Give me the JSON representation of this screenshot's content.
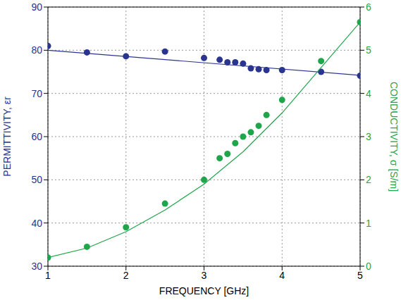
{
  "chart_data": {
    "type": "scatter",
    "xlabel": "FREQUENCY [GHz]",
    "ylabel": "PERMITTIVITY, εr",
    "y2label": "CONDUCTIVITY, σ [S/m]",
    "xlim": [
      1,
      5
    ],
    "xticks": [
      1,
      2,
      3,
      4,
      5
    ],
    "ylim": [
      30,
      90
    ],
    "yticks": [
      30,
      40,
      50,
      60,
      70,
      80,
      90
    ],
    "y2lim": [
      0,
      6
    ],
    "y2ticks": [
      0,
      1,
      2,
      3,
      4,
      5,
      6
    ],
    "grid": true,
    "series": [
      {
        "type": "scatter",
        "marker": "circle",
        "color": "#2a3590",
        "axis": "y",
        "x": [
          1,
          1.5,
          2,
          2.5,
          3,
          3.2,
          3.3,
          3.4,
          3.5,
          3.6,
          3.7,
          3.8,
          4,
          4.5,
          5
        ],
        "values": [
          81,
          79.5,
          78.6,
          79.7,
          78.2,
          77.8,
          77.2,
          77.2,
          76.9,
          75.8,
          75.6,
          75.4,
          75.4,
          75,
          74.1
        ]
      },
      {
        "type": "line",
        "marker": "none",
        "color": "#2a3590",
        "axis": "y",
        "x": [
          1,
          5
        ],
        "values": [
          80,
          74.2
        ]
      },
      {
        "type": "scatter",
        "marker": "circle",
        "color": "#1ea64b",
        "axis": "y2",
        "x": [
          1,
          1.5,
          2,
          2.5,
          3,
          3.2,
          3.3,
          3.4,
          3.5,
          3.6,
          3.7,
          3.8,
          4,
          4.5,
          5
        ],
        "values": [
          0.2,
          0.45,
          0.9,
          1.45,
          2,
          2.5,
          2.6,
          2.85,
          3,
          3.1,
          3.25,
          3.5,
          3.85,
          4.75,
          5.65
        ]
      },
      {
        "type": "line",
        "marker": "none",
        "color": "#1ea64b",
        "axis": "y2",
        "x": [
          1,
          1.5,
          2,
          2.5,
          3,
          3.5,
          4,
          4.5,
          5
        ],
        "values": [
          0.2,
          0.42,
          0.8,
          1.3,
          1.9,
          2.65,
          3.55,
          4.6,
          5.65
        ]
      }
    ]
  }
}
